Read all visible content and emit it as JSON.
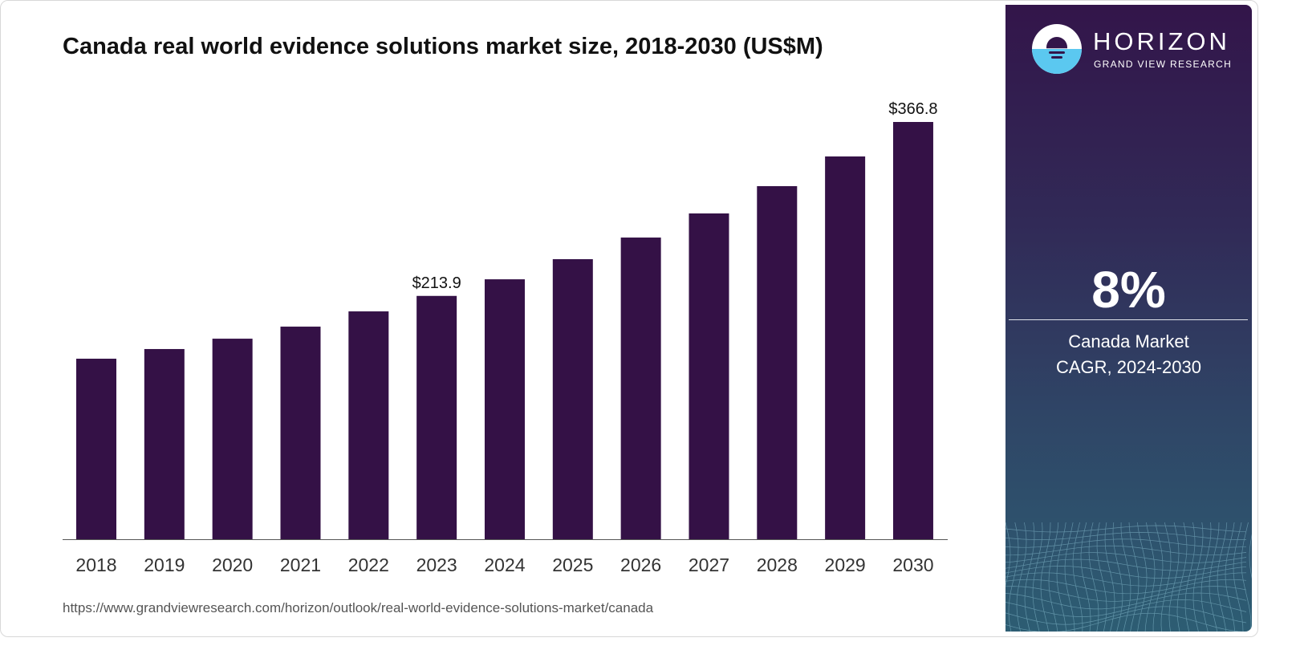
{
  "chart_data": {
    "type": "bar",
    "title": "Canada real world evidence solutions market size, 2018-2030 (US$M)",
    "xlabel": "",
    "ylabel": "",
    "categories": [
      "2018",
      "2019",
      "2020",
      "2021",
      "2022",
      "2023",
      "2024",
      "2025",
      "2026",
      "2027",
      "2028",
      "2029",
      "2030"
    ],
    "values": [
      158.7,
      167.2,
      176.3,
      186.9,
      200.3,
      213.9,
      228.5,
      246.2,
      265.2,
      286.4,
      310.4,
      336.5,
      366.8
    ],
    "data_labels": {
      "2023": "$213.9",
      "2030": "$366.8"
    },
    "ylim": [
      0,
      366.8
    ],
    "grid": false,
    "bar_color": "#341146"
  },
  "source_url": "https://www.grandviewresearch.com/horizon/outlook/real-world-evidence-solutions-market/canada",
  "panel": {
    "brand": "HORIZON",
    "brand_sub": "GRAND VIEW RESEARCH",
    "cagr_value": "8%",
    "cagr_line1": "Canada Market",
    "cagr_line2": "CAGR, 2024-2030"
  }
}
